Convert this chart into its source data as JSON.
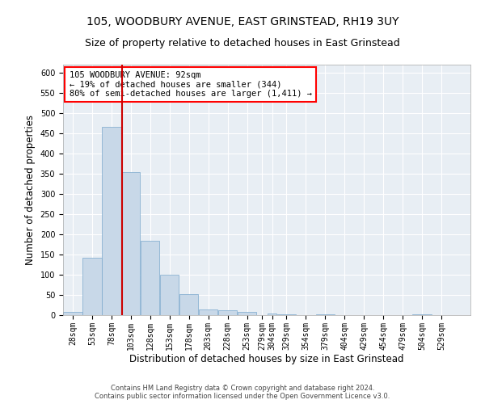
{
  "title": "105, WOODBURY AVENUE, EAST GRINSTEAD, RH19 3UY",
  "subtitle": "Size of property relative to detached houses in East Grinstead",
  "xlabel": "Distribution of detached houses by size in East Grinstead",
  "ylabel": "Number of detached properties",
  "bar_color": "#c8d8e8",
  "bar_edge_color": "#7aa8cc",
  "bg_color": "#e8eef4",
  "grid_color": "#ffffff",
  "annotation_line1": "105 WOODBURY AVENUE: 92sqm",
  "annotation_line2": "← 19% of detached houses are smaller (344)",
  "annotation_line3": "80% of semi-detached houses are larger (1,411) →",
  "vline_x": 92,
  "vline_color": "#cc0000",
  "categories": [
    "28sqm",
    "53sqm",
    "78sqm",
    "103sqm",
    "128sqm",
    "153sqm",
    "178sqm",
    "203sqm",
    "228sqm",
    "253sqm",
    "279sqm",
    "304sqm",
    "329sqm",
    "354sqm",
    "379sqm",
    "404sqm",
    "429sqm",
    "454sqm",
    "479sqm",
    "504sqm",
    "529sqm"
  ],
  "bin_width": 25,
  "bin_starts": [
    15.5,
    40.5,
    65.5,
    90.5,
    115.5,
    140.5,
    165.5,
    190.5,
    215.5,
    240.5,
    265.5,
    279.5,
    291.5,
    316.5,
    341.5,
    366.5,
    391.5,
    416.5,
    441.5,
    466.5,
    491.5
  ],
  "bin_ends": [
    40.5,
    65.5,
    90.5,
    115.5,
    140.5,
    165.5,
    190.5,
    215.5,
    240.5,
    265.5,
    279.5,
    291.5,
    316.5,
    341.5,
    366.5,
    391.5,
    416.5,
    441.5,
    466.5,
    491.5,
    516.5
  ],
  "values": [
    9,
    143,
    466,
    354,
    184,
    101,
    53,
    15,
    12,
    8,
    0,
    5,
    3,
    0,
    2,
    0,
    0,
    0,
    0,
    3,
    0
  ],
  "ylim": [
    0,
    620
  ],
  "xlim": [
    15.5,
    541.5
  ],
  "yticks": [
    0,
    50,
    100,
    150,
    200,
    250,
    300,
    350,
    400,
    450,
    500,
    550,
    600
  ],
  "footnote": "Contains HM Land Registry data © Crown copyright and database right 2024.\nContains public sector information licensed under the Open Government Licence v3.0.",
  "title_fontsize": 10,
  "subtitle_fontsize": 9,
  "axis_label_fontsize": 8.5,
  "tick_fontsize": 7,
  "annot_fontsize": 7.5,
  "footnote_fontsize": 6
}
